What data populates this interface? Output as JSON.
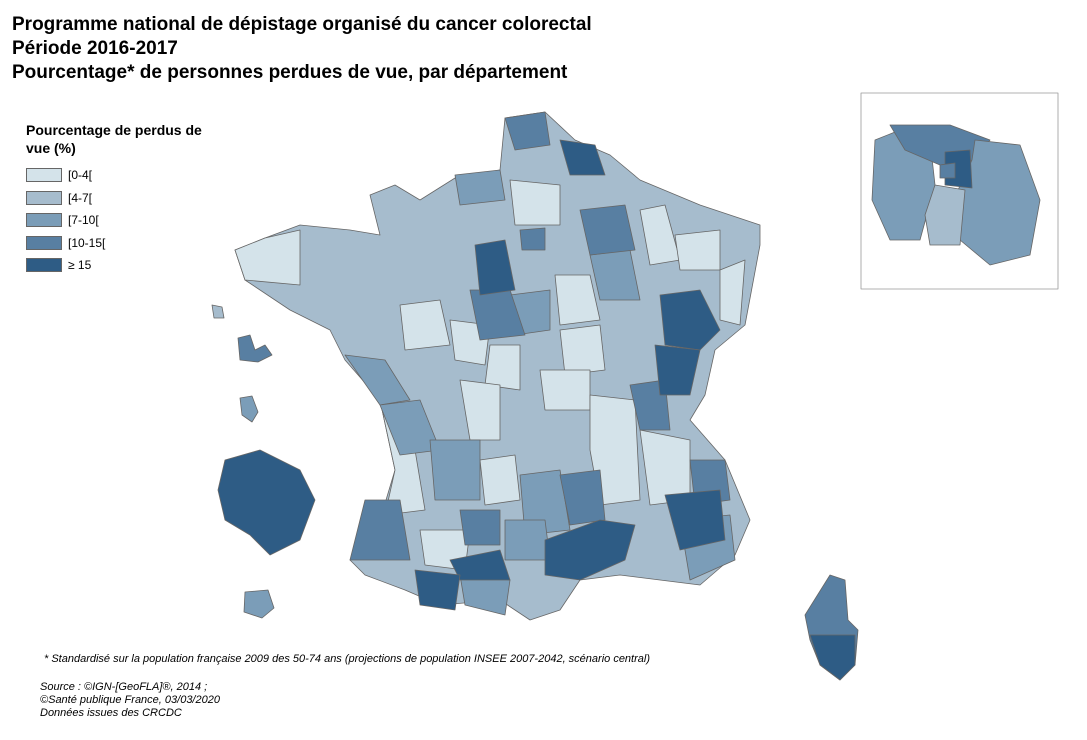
{
  "title": {
    "line1": "Programme national de dépistage organisé du cancer colorectal",
    "line2": "Période 2016-2017",
    "line3": "Pourcentage* de personnes perdues de vue, par département"
  },
  "legend": {
    "title": "Pourcentage de perdus de vue (%)",
    "classes": [
      {
        "label": "[0-4[",
        "color": "#d4e3ea"
      },
      {
        "label": "[4-7[",
        "color": "#a6bccd"
      },
      {
        "label": "[7-10[",
        "color": "#7b9db8"
      },
      {
        "label": "[10-15[",
        "color": "#587fa2"
      },
      {
        "label": "≥ 15",
        "color": "#2e5c85"
      }
    ]
  },
  "footnote": "* Standardisé sur la population française 2009 des 50-74 ans (projections de population INSEE 2007-2042, scénario central)",
  "source": {
    "line1": "Source : ©IGN-[GeoFLA]®, 2014 ;",
    "line2": "©Santé publique France, 03/03/2020",
    "line3": "Données issues des CRCDC"
  }
}
